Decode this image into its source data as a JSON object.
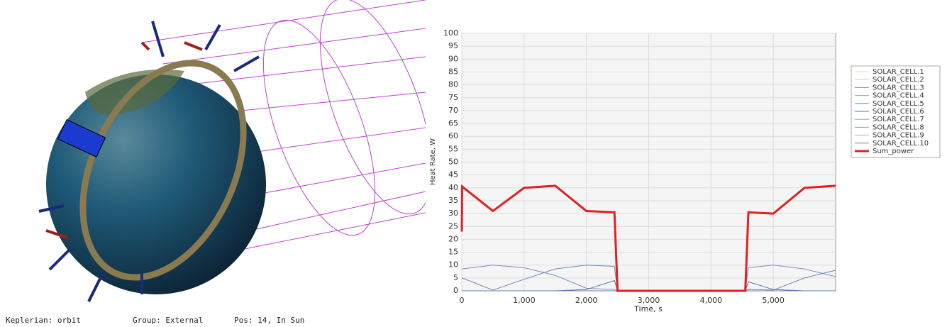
{
  "viewport": {
    "status": [
      "Keplerian: orbit",
      "Group: External",
      "Pos: 14, In Sun"
    ]
  },
  "chart_data": {
    "type": "line",
    "y_label": "Heat Rate, W",
    "x_label": "Time, s",
    "x": [
      0,
      5,
      500,
      1000,
      1500,
      2000,
      2450,
      2500,
      4550,
      4600,
      5000,
      5500,
      6000
    ],
    "series": [
      {
        "name": "SOLAR_CELL.1",
        "color": "#e8e0a0",
        "width": 1,
        "values": [
          0,
          0,
          0,
          0,
          0,
          0,
          0,
          0,
          0,
          0,
          0,
          0,
          0
        ]
      },
      {
        "name": "SOLAR_CELL.2",
        "color": "#c8d4e0",
        "width": 1,
        "values": [
          0,
          0,
          0,
          0,
          0,
          0,
          0,
          0,
          0,
          0,
          0,
          0,
          0
        ]
      },
      {
        "name": "SOLAR_CELL.3",
        "color": "#7c90b8",
        "width": 1,
        "values": [
          8.5,
          8.5,
          10,
          9,
          6,
          1,
          0.5,
          0,
          0,
          9,
          10,
          8.5,
          5.5
        ]
      },
      {
        "name": "SOLAR_CELL.4",
        "color": "#8fa0c0",
        "width": 1,
        "values": [
          0,
          0,
          0,
          0,
          0,
          0,
          0,
          0,
          0,
          0,
          0,
          0,
          0
        ]
      },
      {
        "name": "SOLAR_CELL.5",
        "color": "#6f86b4",
        "width": 1,
        "values": [
          5,
          5,
          0.3,
          4.5,
          8.5,
          10,
          9.5,
          0,
          0,
          0.5,
          0.3,
          5,
          8
        ]
      },
      {
        "name": "SOLAR_CELL.6",
        "color": "#5a72a8",
        "width": 1,
        "values": [
          0,
          0,
          0,
          0,
          0,
          0.5,
          4,
          0,
          0,
          3.5,
          0.5,
          0,
          0
        ]
      },
      {
        "name": "SOLAR_CELL.7",
        "color": "#98a8c8",
        "width": 1,
        "values": [
          0,
          0,
          0,
          0,
          0,
          0,
          0,
          0,
          0,
          0,
          0,
          0,
          0
        ]
      },
      {
        "name": "SOLAR_CELL.8",
        "color": "#8194bc",
        "width": 1,
        "values": [
          0,
          0,
          0,
          0,
          0,
          0,
          0,
          0,
          0,
          0,
          0,
          0,
          0
        ]
      },
      {
        "name": "SOLAR_CELL.9",
        "color": "#a4b2cc",
        "width": 1,
        "values": [
          0,
          0,
          0,
          0,
          0,
          0,
          0,
          0,
          0,
          0,
          0,
          0,
          0
        ]
      },
      {
        "name": "SOLAR_CELL.10",
        "color": "#6a80b0",
        "width": 1,
        "values": [
          0,
          0,
          0,
          0,
          0,
          0,
          0,
          0,
          0,
          0,
          0,
          0,
          0
        ]
      },
      {
        "name": "Sum_power",
        "color": "#e02020",
        "width": 3,
        "values": [
          23,
          40.5,
          31,
          40,
          40.8,
          31,
          30.5,
          0,
          0,
          30.5,
          30,
          40,
          40.8
        ]
      }
    ],
    "xlim": [
      0,
      6000
    ],
    "ylim": [
      0,
      100
    ],
    "xticks": [
      0,
      {
        "value": 1000,
        "label": "1,000"
      },
      {
        "value": 2000,
        "label": "2,000"
      },
      {
        "value": 3000,
        "label": "3,000"
      },
      {
        "value": 4000,
        "label": "4,000"
      },
      {
        "value": 5000,
        "label": "5,000"
      }
    ],
    "yticks": [
      0,
      5,
      10,
      15,
      20,
      25,
      30,
      35,
      40,
      45,
      50,
      55,
      60,
      65,
      70,
      75,
      80,
      85,
      90,
      95,
      100
    ],
    "grid": true,
    "legend": "right"
  }
}
